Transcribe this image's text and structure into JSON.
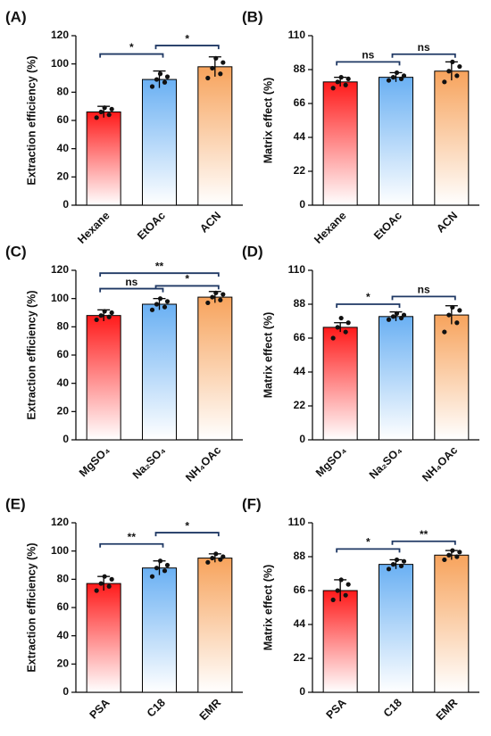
{
  "chart_data": [
    {
      "type": "bar",
      "title": "(A)",
      "ylabel": "Extraction efficiency (%)",
      "categories": [
        "Hexane",
        "EtOAc",
        "ACN"
      ],
      "values": [
        66,
        89,
        98
      ],
      "errors": [
        4,
        6,
        7
      ],
      "points": [
        [
          62,
          64,
          66,
          68,
          69
        ],
        [
          84,
          87,
          89,
          91,
          93
        ],
        [
          90,
          93,
          97,
          101,
          104
        ]
      ],
      "colors": [
        "#ff1a1a",
        "#6ab0f3",
        "#f7a35c"
      ],
      "ylim": [
        0,
        120
      ],
      "yticks": [
        0,
        20,
        40,
        60,
        80,
        100,
        120
      ],
      "brackets": [
        {
          "from": 0,
          "to": 1,
          "y": 107,
          "label": "*"
        },
        {
          "from": 1,
          "to": 2,
          "y": 113,
          "label": "*"
        }
      ]
    },
    {
      "type": "bar",
      "title": "(B)",
      "ylabel": "Matrix effect (%)",
      "categories": [
        "Hexane",
        "EtOAc",
        "ACN"
      ],
      "values": [
        80,
        83,
        87
      ],
      "errors": [
        3,
        3,
        6
      ],
      "points": [
        [
          76,
          78,
          80,
          82,
          83
        ],
        [
          81,
          82,
          83,
          84,
          86
        ],
        [
          80,
          84,
          87,
          90,
          93
        ]
      ],
      "colors": [
        "#ff1a1a",
        "#6ab0f3",
        "#f7a35c"
      ],
      "ylim": [
        0,
        110
      ],
      "yticks": [
        0,
        22,
        44,
        66,
        88,
        110
      ],
      "brackets": [
        {
          "from": 0,
          "to": 1,
          "y": 93,
          "label": "ns"
        },
        {
          "from": 1,
          "to": 2,
          "y": 98,
          "label": "ns"
        }
      ]
    },
    {
      "type": "bar",
      "title": "(C)",
      "ylabel": "Extraction efficiency (%)",
      "categories": [
        "MgSO₄",
        "Na₂SO₄",
        "NH₄OAc"
      ],
      "values": [
        88,
        96,
        101
      ],
      "errors": [
        4,
        4,
        4
      ],
      "points": [
        [
          85,
          87,
          88,
          90,
          91
        ],
        [
          92,
          94,
          96,
          98,
          100
        ],
        [
          97,
          99,
          101,
          103,
          104
        ]
      ],
      "colors": [
        "#ff1a1a",
        "#6ab0f3",
        "#f7a35c"
      ],
      "ylim": [
        0,
        120
      ],
      "yticks": [
        0,
        20,
        40,
        60,
        80,
        100,
        120
      ],
      "brackets": [
        {
          "from": 0,
          "to": 1,
          "y": 107,
          "label": "ns"
        },
        {
          "from": 1,
          "to": 2,
          "y": 109,
          "label": "*"
        },
        {
          "from": 0,
          "to": 2,
          "y": 118,
          "label": "**"
        }
      ]
    },
    {
      "type": "bar",
      "title": "(D)",
      "ylabel": "Matrix effect (%)",
      "categories": [
        "MgSO₄",
        "Na₂SO₄",
        "NH₄OAc"
      ],
      "values": [
        73,
        80,
        81
      ],
      "errors": [
        3,
        3,
        6
      ],
      "points": [
        [
          66,
          70,
          73,
          76,
          79
        ],
        [
          78,
          79,
          80,
          81,
          82
        ],
        [
          70,
          76,
          81,
          84,
          86
        ]
      ],
      "colors": [
        "#ff1a1a",
        "#6ab0f3",
        "#f7a35c"
      ],
      "ylim": [
        0,
        110
      ],
      "yticks": [
        0,
        22,
        44,
        66,
        88,
        110
      ],
      "brackets": [
        {
          "from": 0,
          "to": 1,
          "y": 88,
          "label": "*"
        },
        {
          "from": 1,
          "to": 2,
          "y": 93,
          "label": "ns"
        }
      ]
    },
    {
      "type": "bar",
      "title": "(E)",
      "ylabel": "Extraction efficiency (%)",
      "categories": [
        "PSA",
        "C18",
        "EMR"
      ],
      "values": [
        77,
        88,
        95
      ],
      "errors": [
        5,
        5,
        3
      ],
      "points": [
        [
          72,
          75,
          77,
          80,
          82
        ],
        [
          82,
          86,
          88,
          90,
          93
        ],
        [
          92,
          94,
          95,
          96,
          98
        ]
      ],
      "colors": [
        "#ff1a1a",
        "#6ab0f3",
        "#f7a35c"
      ],
      "ylim": [
        0,
        120
      ],
      "yticks": [
        0,
        20,
        40,
        60,
        80,
        100,
        120
      ],
      "brackets": [
        {
          "from": 0,
          "to": 1,
          "y": 105,
          "label": "**"
        },
        {
          "from": 1,
          "to": 2,
          "y": 113,
          "label": "*"
        }
      ]
    },
    {
      "type": "bar",
      "title": "(F)",
      "ylabel": "Matrix effect (%)",
      "categories": [
        "PSA",
        "C18",
        "EMR"
      ],
      "values": [
        66,
        83,
        89
      ],
      "errors": [
        7,
        3,
        3
      ],
      "points": [
        [
          60,
          63,
          66,
          70,
          73
        ],
        [
          80,
          82,
          83,
          85,
          86
        ],
        [
          86,
          88,
          89,
          91,
          92
        ]
      ],
      "colors": [
        "#ff1a1a",
        "#6ab0f3",
        "#f7a35c"
      ],
      "ylim": [
        0,
        110
      ],
      "yticks": [
        0,
        22,
        44,
        66,
        88,
        110
      ],
      "brackets": [
        {
          "from": 0,
          "to": 1,
          "y": 93,
          "label": "*"
        },
        {
          "from": 1,
          "to": 2,
          "y": 98,
          "label": "**"
        }
      ]
    }
  ]
}
